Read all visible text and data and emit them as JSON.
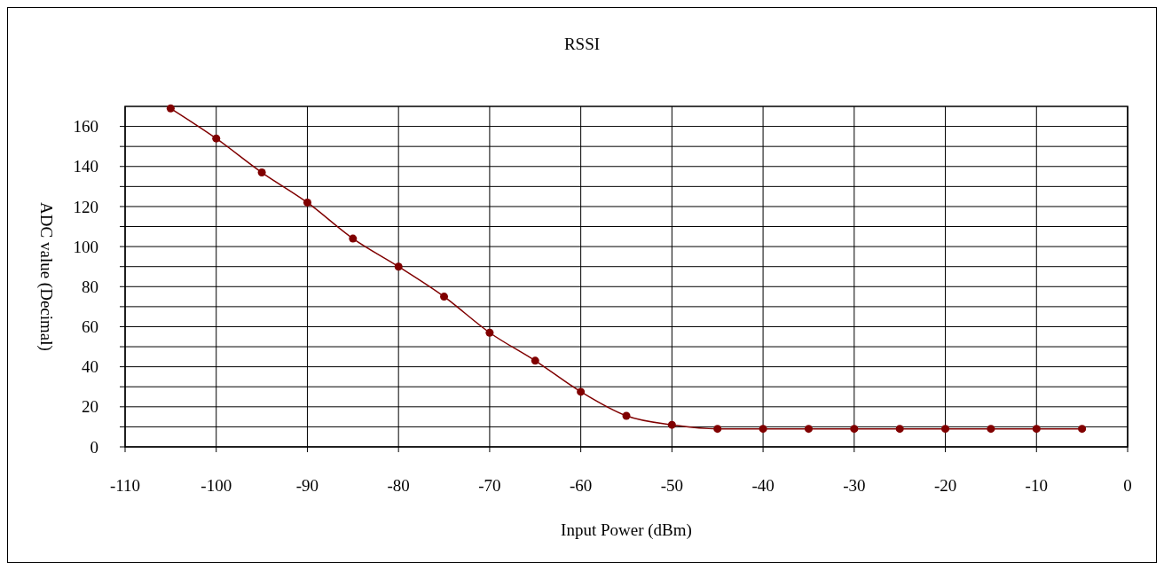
{
  "chart_data": {
    "type": "line",
    "title": "RSSI",
    "xlabel": "Input Power (dBm)",
    "ylabel": "ADC value (Decimal)",
    "x": [
      -105,
      -100,
      -95,
      -90,
      -85,
      -80,
      -75,
      -70,
      -65,
      -60,
      -55,
      -50,
      -45,
      -40,
      -35,
      -30,
      -25,
      -20,
      -15,
      -10,
      -5
    ],
    "series": [
      {
        "color": "#800000",
        "values": [
          169,
          154,
          137,
          122,
          104,
          90,
          75,
          57,
          43,
          27.5,
          15.5,
          11,
          9,
          9,
          9,
          9,
          9,
          9,
          9,
          9,
          9
        ]
      }
    ],
    "xlim": [
      -110,
      0
    ],
    "xticks": [
      -110,
      -100,
      -90,
      -80,
      -70,
      -60,
      -50,
      -40,
      -30,
      -20,
      -10,
      0
    ],
    "ylim": [
      0,
      170
    ],
    "yticks": [
      0,
      {
        "value": 10,
        "label": null
      },
      20,
      {
        "value": 30,
        "label": null
      },
      40,
      {
        "value": 50,
        "label": null
      },
      60,
      {
        "value": 70,
        "label": null
      },
      80,
      {
        "value": 90,
        "label": null
      },
      100,
      {
        "value": 110,
        "label": null
      },
      120,
      {
        "value": 130,
        "label": null
      },
      140,
      {
        "value": 150,
        "label": null
      },
      160
    ],
    "grid": true,
    "marker": "circle",
    "line_style": "solid"
  }
}
